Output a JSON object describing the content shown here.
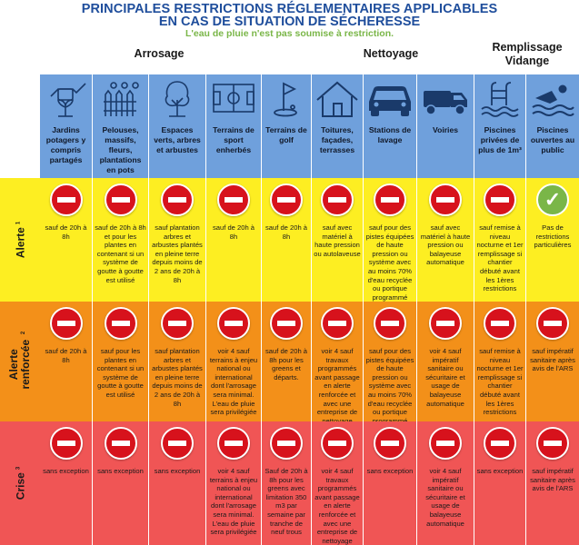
{
  "header": {
    "title_line1": "PRINCIPALES RESTRICTIONS RÉGLEMENTAIRES APPLICABLES",
    "title_line2": "EN CAS DE SITUATION DE SÉCHERESSE",
    "subtitle": "L'eau de pluie n'est pas soumise à restriction."
  },
  "groups": [
    "Arrosage",
    "Nettoyage",
    "Remplissage Vidange"
  ],
  "columns": [
    {
      "label": "Jardins potagers y compris partagés",
      "icon": "watering-can-plant-icon"
    },
    {
      "label": "Pelouses, massifs, fleurs, plantations en pots",
      "icon": "garden-fence-icon"
    },
    {
      "label": "Espaces verts, arbres et arbustes",
      "icon": "tree-icon"
    },
    {
      "label": "Terrains de sport enherbés",
      "icon": "sports-field-icon"
    },
    {
      "label": "Terrains de golf",
      "icon": "golf-flag-icon"
    },
    {
      "label": "Toitures, façades, terrasses",
      "icon": "house-icon"
    },
    {
      "label": "Stations de lavage",
      "icon": "car-icon"
    },
    {
      "label": "Voiries",
      "icon": "street-sweeper-icon"
    },
    {
      "label": "Piscines privées de plus de 1m³",
      "icon": "pool-ladder-icon"
    },
    {
      "label": "Piscines ouvertes au public",
      "icon": "swimmer-icon"
    }
  ],
  "rows": [
    {
      "label": "Alerte",
      "sup": "1",
      "cells": [
        {
          "type": "forbidden",
          "note": "sauf de 20h à 8h"
        },
        {
          "type": "forbidden",
          "note": "sauf de 20h à 8h et pour les plantes en contenant si un système de goutte à goutte est utilisé"
        },
        {
          "type": "forbidden",
          "note": "sauf plantation arbres et arbustes plantés en pleine terre depuis moins de 2 ans de 20h à 8h"
        },
        {
          "type": "forbidden",
          "note": "sauf de 20h à 8h"
        },
        {
          "type": "forbidden",
          "note": "sauf de 20h à 8h"
        },
        {
          "type": "forbidden",
          "note": "sauf avec matériel à haute pression ou autolaveuse"
        },
        {
          "type": "forbidden",
          "note": "sauf pour des pistes équipées de haute pression ou système avec au moins 70% d'eau recyclée ou portique programmé ECO sur ouverture partielle"
        },
        {
          "type": "forbidden",
          "note": "sauf avec matériel à haute pression ou balayeuse automatique"
        },
        {
          "type": "forbidden",
          "note": "sauf remise à niveau nocturne et 1er remplissage si chantier débuté avant les 1ères restrictions"
        },
        {
          "type": "allowed",
          "note": "Pas de restrictions particulières"
        }
      ]
    },
    {
      "label": "Alerte renforcée",
      "sup": "2",
      "cells": [
        {
          "type": "forbidden",
          "note": "sauf de 20h à 8h"
        },
        {
          "type": "forbidden",
          "note": "sauf pour les plantes en contenant si un système de goutte à goutte est utilisé"
        },
        {
          "type": "forbidden",
          "note": "sauf plantation arbres et arbustes plantés en pleine terre depuis moins de 2 ans de 20h à 8h"
        },
        {
          "type": "forbidden",
          "note": "voir 4 sauf terrains à enjeu national ou international dont l'arrosage sera minimal. L'eau de pluie sera privilégiée"
        },
        {
          "type": "forbidden",
          "note": "sauf de 20h à 8h pour les greens et départs."
        },
        {
          "type": "forbidden",
          "note": "voir 4 sauf travaux programmés avant passage en alerte renforcée et avec une entreprise de nettoyage professionnel"
        },
        {
          "type": "forbidden",
          "note": "sauf pour des pistes équipées de haute pression ou système avec au moins 70% d'eau recyclée ou portique programmé ECO sur ouverture partielle"
        },
        {
          "type": "forbidden",
          "note": "voir 4 sauf impératif sanitaire ou sécuritaire et usage de balayeuse automatique"
        },
        {
          "type": "forbidden",
          "note": "sauf remise à niveau nocturne et 1er remplissage si chantier débuté avant les 1ères restrictions"
        },
        {
          "type": "forbidden",
          "note": "sauf impératif sanitaire après avis de l'ARS"
        }
      ]
    },
    {
      "label": "Crise",
      "sup": "3",
      "cells": [
        {
          "type": "forbidden",
          "note": "sans exception"
        },
        {
          "type": "forbidden",
          "note": "sans exception"
        },
        {
          "type": "forbidden",
          "note": "sans exception"
        },
        {
          "type": "forbidden",
          "note": "voir 4 sauf terrains à enjeu national ou international dont l'arrosage sera minimal. L'eau de pluie sera privilégiée"
        },
        {
          "type": "forbidden",
          "note": "Sauf de 20h à 8h pour les greens avec limitation 350 m3 par semaine par tranche de neuf trous"
        },
        {
          "type": "forbidden",
          "note": "voir 4 sauf travaux programmés avant passage en alerte renforcée et avec une entreprise de nettoyage professionnel"
        },
        {
          "type": "forbidden",
          "note": "sans exception"
        },
        {
          "type": "forbidden",
          "note": "voir 4 sauf impératif sanitaire ou sécuritaire et usage de balayeuse automatique"
        },
        {
          "type": "forbidden",
          "note": "sans exception"
        },
        {
          "type": "forbidden",
          "note": "sauf impératif sanitaire après avis de l'ARS"
        }
      ]
    }
  ],
  "colors": {
    "title": "#1f4e9c",
    "subtitle": "#7ab648",
    "header": "#6fa0dc",
    "alerte": "#fdee22",
    "renforcee": "#f39019",
    "crise": "#f05555",
    "forbidden": "#d7121c",
    "allowed": "#7ab648"
  }
}
